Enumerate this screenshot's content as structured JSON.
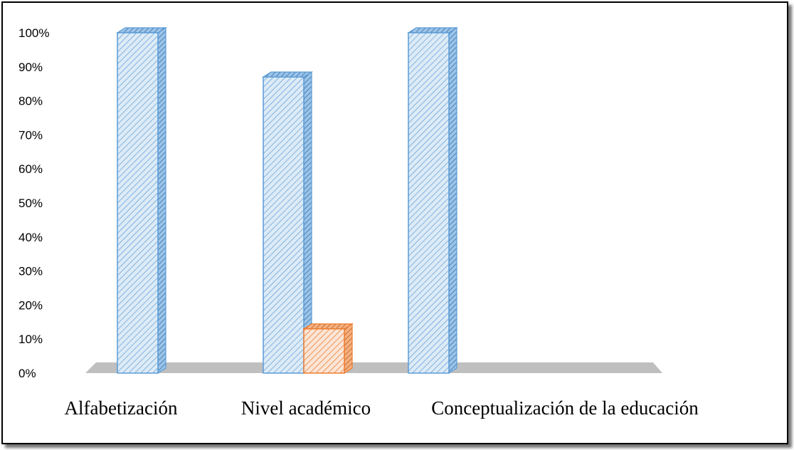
{
  "chart_data": {
    "type": "bar",
    "categories": [
      "Alfabetización",
      "Nivel académico",
      "Conceptualización de la educación"
    ],
    "series": [
      {
        "values": [
          1.0,
          0.87,
          1.0
        ],
        "color": "#5B9BD5"
      },
      {
        "values": [
          0.0,
          0.13,
          0.0
        ],
        "color": "#ED7D31"
      }
    ],
    "ylim": [
      0,
      1
    ],
    "yticks": [
      "0%",
      "10%",
      "20%",
      "30%",
      "40%",
      "50%",
      "60%",
      "70%",
      "80%",
      "90%",
      "100%"
    ],
    "grid": false,
    "legend": "none",
    "style": "3d-hatched"
  }
}
